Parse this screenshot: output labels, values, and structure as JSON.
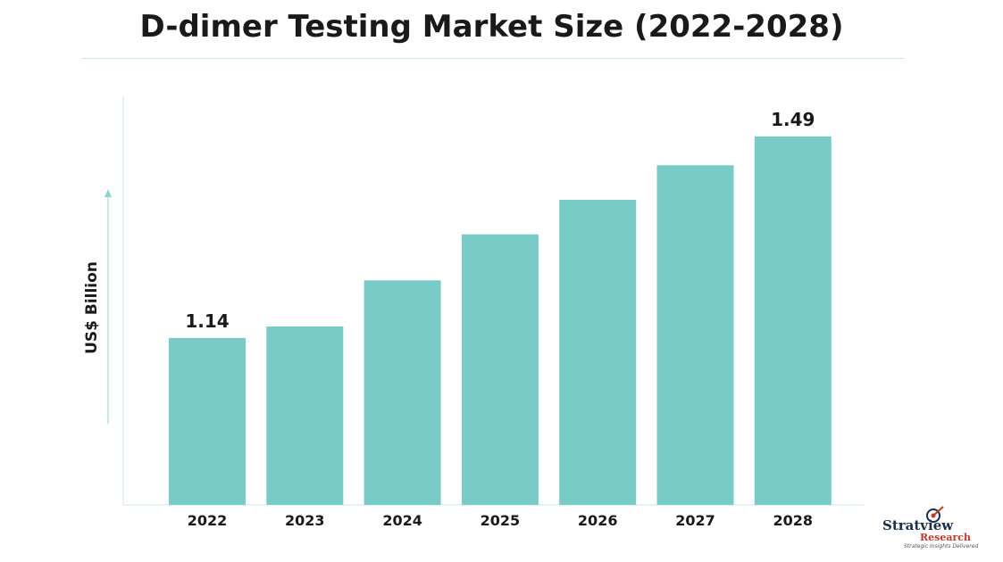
{
  "chart_data": {
    "type": "bar",
    "title": "D-dimer Testing Market Size (2022-2028)",
    "ylabel": "US$ Billion",
    "xlabel": "",
    "categories": [
      "2022",
      "2023",
      "2024",
      "2025",
      "2026",
      "2027",
      "2028"
    ],
    "values": [
      1.14,
      1.16,
      1.24,
      1.32,
      1.38,
      1.44,
      1.49
    ],
    "data_labels": {
      "2022": "1.14",
      "2028": "1.49"
    },
    "ylim": [
      0.85,
      1.5
    ],
    "grid": false,
    "bar_color": "#78cbc7"
  },
  "logo": {
    "name": "Stratview",
    "sub": "Research",
    "tagline": "Strategic Insights Delivered"
  }
}
